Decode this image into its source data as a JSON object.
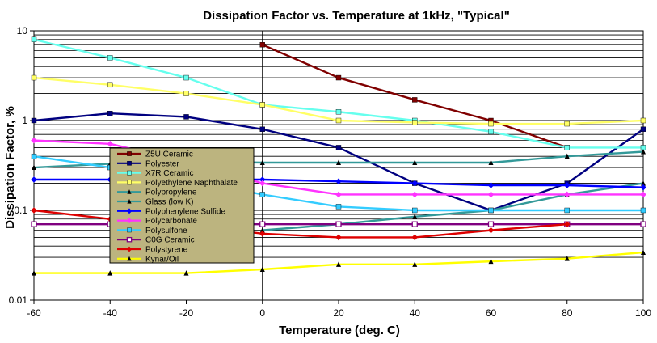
{
  "chart_data": {
    "type": "line",
    "title": "Dissipation Factor vs. Temperature at 1kHz, \"Typical\"",
    "xlabel": "Temperature (deg. C)",
    "ylabel": "Dissipation Factor, %",
    "xlim": [
      -60,
      100
    ],
    "ylim": [
      0.01,
      10
    ],
    "y_scale": "log",
    "grid": true,
    "legend_placement": "left",
    "x_ticks": [
      "-60",
      "-40",
      "-20",
      "0",
      "20",
      "40",
      "60",
      "80",
      "100"
    ],
    "y_ticks": [
      "10",
      "1",
      "0.1",
      "0.01"
    ],
    "series": [
      {
        "name": "Z5U Ceramic",
        "color": "#800000",
        "marker": "square-filled",
        "x": [
          0,
          20,
          40,
          60,
          80
        ],
        "y": [
          7,
          3,
          1.7,
          1.0,
          0.5
        ]
      },
      {
        "name": "Polyester",
        "color": "#000080",
        "marker": "square-filled",
        "x": [
          -60,
          -40,
          -20,
          0,
          20,
          40,
          60,
          80,
          100
        ],
        "y": [
          1.0,
          1.2,
          1.1,
          0.8,
          0.5,
          0.2,
          0.1,
          0.2,
          0.8
        ]
      },
      {
        "name": "X7R Ceramic",
        "color": "#66ffee",
        "marker": "square-filled",
        "x": [
          -60,
          -40,
          -20,
          0,
          20,
          40,
          60,
          80,
          100
        ],
        "y": [
          8,
          5,
          3,
          1.5,
          1.25,
          1.0,
          0.75,
          0.5,
          0.5
        ]
      },
      {
        "name": "Polyethylene Naphthalate",
        "color": "#ffff66",
        "marker": "square-filled",
        "x": [
          -60,
          -40,
          -20,
          0,
          20,
          40,
          60,
          80,
          100
        ],
        "y": [
          3,
          2.5,
          2,
          1.5,
          1.0,
          0.95,
          0.92,
          0.92,
          1.0
        ]
      },
      {
        "name": "Polypropylene",
        "color": "#339999",
        "marker": "triangle",
        "x": [
          -60,
          -40,
          -20,
          0,
          20,
          40,
          60,
          80,
          100
        ],
        "y": [
          0.3,
          0.33,
          0.35,
          0.34,
          0.34,
          0.34,
          0.34,
          0.4,
          0.45
        ]
      },
      {
        "name": "Glass (low K)",
        "color": "#339999",
        "marker": "triangle",
        "x": [
          0,
          20,
          40,
          60,
          80,
          100
        ],
        "y": [
          0.06,
          0.07,
          0.085,
          0.1,
          0.15,
          0.2
        ]
      },
      {
        "name": "Polyphenylene Sulfide",
        "color": "#0000ff",
        "marker": "diamond",
        "x": [
          -60,
          -40,
          -20,
          0,
          20,
          40,
          60,
          80,
          100
        ],
        "y": [
          0.22,
          0.22,
          0.22,
          0.22,
          0.21,
          0.2,
          0.19,
          0.19,
          0.18
        ]
      },
      {
        "name": "Polycarbonate",
        "color": "#ff33ff",
        "marker": "diamond",
        "x": [
          -60,
          -40,
          -20,
          0,
          20,
          40,
          60,
          80,
          100
        ],
        "y": [
          0.6,
          0.55,
          0.35,
          0.2,
          0.15,
          0.15,
          0.15,
          0.15,
          0.15
        ]
      },
      {
        "name": "Polysulfone",
        "color": "#33ccff",
        "marker": "square-filled",
        "x": [
          -60,
          -40,
          -20,
          0,
          20,
          40,
          60,
          80,
          100
        ],
        "y": [
          0.4,
          0.3,
          0.22,
          0.15,
          0.11,
          0.1,
          0.1,
          0.1,
          0.1
        ]
      },
      {
        "name": "C0G Ceramic",
        "color": "#800080",
        "marker": "square-open",
        "x": [
          -60,
          -40,
          -20,
          0,
          20,
          40,
          60,
          80,
          100
        ],
        "y": [
          0.07,
          0.07,
          0.07,
          0.07,
          0.07,
          0.07,
          0.07,
          0.07,
          0.07
        ]
      },
      {
        "name": "Polystyrene",
        "color": "#dd0000",
        "marker": "diamond",
        "x": [
          -60,
          -40,
          -20,
          0,
          20,
          40,
          60,
          80
        ],
        "y": [
          0.1,
          0.08,
          0.07,
          0.055,
          0.05,
          0.05,
          0.06,
          0.07
        ]
      },
      {
        "name": "Kynar/Oil",
        "color": "#ffff00",
        "marker": "triangle",
        "x": [
          -60,
          -40,
          -20,
          0,
          20,
          40,
          60,
          80,
          100
        ],
        "y": [
          0.02,
          0.02,
          0.02,
          0.022,
          0.025,
          0.025,
          0.027,
          0.029,
          0.034
        ]
      }
    ]
  }
}
